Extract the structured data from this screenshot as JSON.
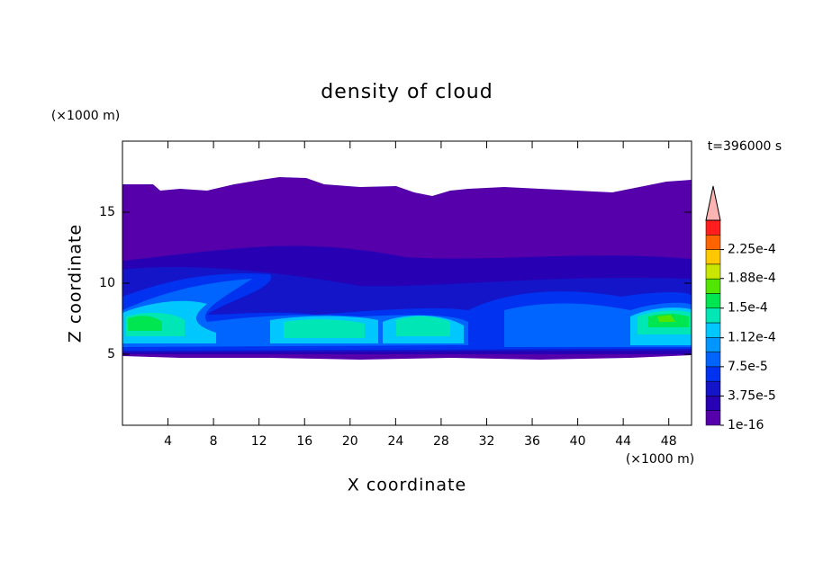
{
  "chart_data": {
    "type": "contour",
    "title": "density of cloud",
    "x_label": "X coordinate",
    "y_label": "Z coordinate",
    "x_unit": "(×1000 m)",
    "y_unit": "(×1000 m)",
    "time_label": "t=396000 s",
    "xlim": [
      0,
      50
    ],
    "ylim": [
      0,
      20
    ],
    "xticks": [
      4,
      8,
      12,
      16,
      20,
      24,
      28,
      32,
      36,
      40,
      44,
      48
    ],
    "yticks": [
      5,
      10,
      15
    ],
    "colorbar": {
      "lim": [
        1e-16,
        0.0002625
      ],
      "ticks": [
        {
          "value": 1e-16,
          "label": "1e-16"
        },
        {
          "value": 3.75e-05,
          "label": "3.75e-5"
        },
        {
          "value": 7.5e-05,
          "label": "7.5e-5"
        },
        {
          "value": 0.000112,
          "label": "1.12e-4"
        },
        {
          "value": 0.00015,
          "label": "1.5e-4"
        },
        {
          "value": 0.000188,
          "label": "1.88e-4"
        },
        {
          "value": 0.000225,
          "label": "2.25e-4"
        }
      ],
      "colors": [
        "#5500aa",
        "#2800b4",
        "#1414c8",
        "#0032f0",
        "#0064ff",
        "#0096ff",
        "#00c8ff",
        "#00e6b4",
        "#00e650",
        "#50e600",
        "#c8e600",
        "#ffc800",
        "#ff6400",
        "#ff1e1e"
      ],
      "extend_color": "#ffb4b4"
    }
  }
}
